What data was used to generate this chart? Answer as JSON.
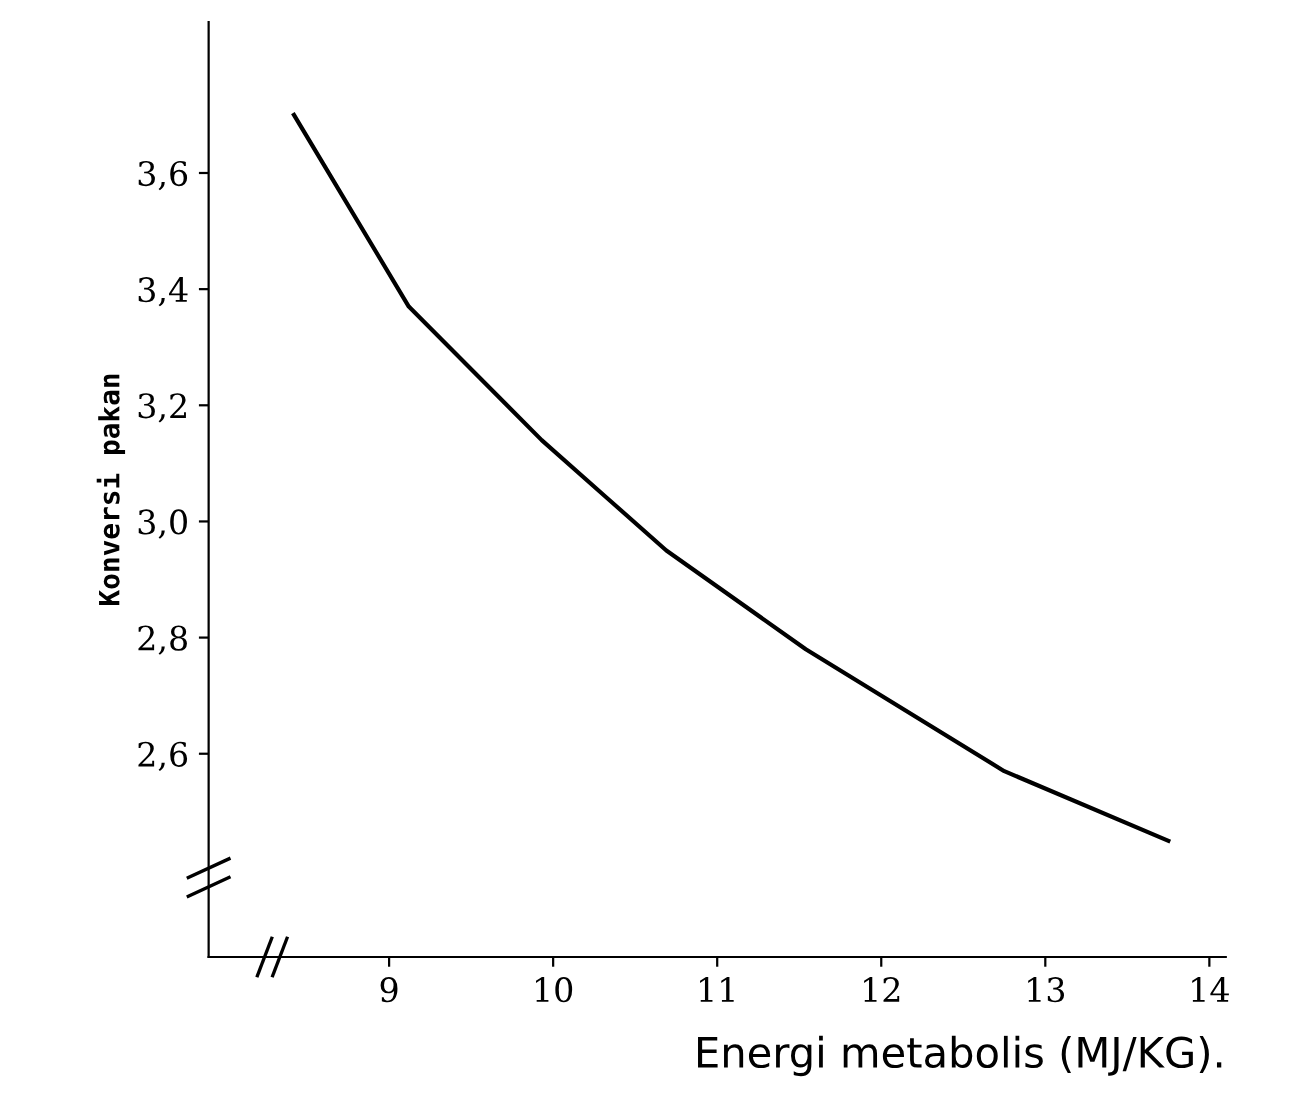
{
  "chart_data": {
    "type": "line",
    "xlabel": "Energi metabolis (MJ/KG).",
    "ylabel": "Konversi pakan",
    "x": [
      8.42,
      9.12,
      9.93,
      10.33,
      10.69,
      11.54,
      12.75,
      13.75
    ],
    "series": [
      {
        "color": "#000000",
        "values": [
          3.7,
          3.37,
          3.14,
          3.04,
          2.95,
          2.78,
          2.57,
          2.45
        ]
      }
    ],
    "xlim": [
      7.9,
      14.1
    ],
    "ylim": [
      2.25,
      3.86
    ],
    "xticks": [
      9,
      10,
      11,
      12,
      13,
      14
    ],
    "yticks": [
      {
        "value": 2.6,
        "label": "2,6"
      },
      {
        "value": 2.8,
        "label": "2,8"
      },
      {
        "value": 3.0,
        "label": "3,0"
      },
      {
        "value": 3.2,
        "label": "3,2"
      },
      {
        "value": 3.4,
        "label": "3,4"
      },
      {
        "value": 3.6,
        "label": "3,6"
      }
    ],
    "grid": false,
    "legend": false,
    "marker": "none",
    "line_style": "solid"
  }
}
